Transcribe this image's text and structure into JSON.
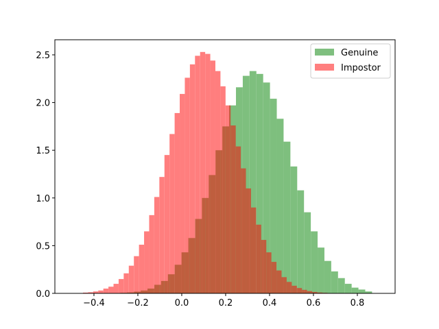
{
  "chart_data": {
    "type": "histogram",
    "series": [
      {
        "name": "Genuine",
        "color": "#008000",
        "alpha": 0.5,
        "bins": [
          -0.28,
          -0.249,
          -0.218,
          -0.187,
          -0.156,
          -0.125,
          -0.094,
          -0.063,
          -0.032,
          -0.001,
          0.03,
          0.061,
          0.092,
          0.123,
          0.154,
          0.185,
          0.216,
          0.247,
          0.278,
          0.309,
          0.34,
          0.371,
          0.402,
          0.433,
          0.464,
          0.495,
          0.526,
          0.557,
          0.588,
          0.619,
          0.65,
          0.681,
          0.712,
          0.743,
          0.774,
          0.805,
          0.836,
          0.867
        ],
        "values": [
          0.006,
          0.01,
          0.018,
          0.03,
          0.05,
          0.09,
          0.13,
          0.2,
          0.3,
          0.43,
          0.58,
          0.78,
          1.0,
          1.24,
          1.5,
          1.75,
          1.97,
          2.16,
          2.28,
          2.33,
          2.3,
          2.21,
          2.04,
          1.83,
          1.59,
          1.33,
          1.08,
          0.85,
          0.65,
          0.48,
          0.34,
          0.23,
          0.16,
          0.1,
          0.06,
          0.04,
          0.02
        ]
      },
      {
        "name": "Impostor",
        "color": "#ff0000",
        "alpha": 0.5,
        "bins": [
          -0.45,
          -0.4268,
          -0.4036,
          -0.3804,
          -0.3572,
          -0.334,
          -0.3108,
          -0.2876,
          -0.2644,
          -0.2412,
          -0.218,
          -0.1948,
          -0.1716,
          -0.1484,
          -0.1252,
          -0.102,
          -0.0788,
          -0.0556,
          -0.0324,
          -0.0092,
          0.014,
          0.0372,
          0.0604,
          0.0836,
          0.1068,
          0.13,
          0.1532,
          0.1764,
          0.1996,
          0.2228,
          0.246,
          0.2692,
          0.2924,
          0.3156,
          0.3388,
          0.362,
          0.3852,
          0.4084,
          0.4316,
          0.4548,
          0.478,
          0.5012,
          0.5244,
          0.5476,
          0.5708,
          0.594,
          0.6172,
          0.6404,
          0.6636,
          0.6868,
          0.71
        ],
        "values": [
          0.008,
          0.012,
          0.02,
          0.03,
          0.05,
          0.07,
          0.1,
          0.15,
          0.21,
          0.29,
          0.39,
          0.51,
          0.65,
          0.82,
          1.01,
          1.22,
          1.45,
          1.67,
          1.89,
          2.09,
          2.26,
          2.4,
          2.49,
          2.53,
          2.51,
          2.44,
          2.33,
          2.17,
          1.97,
          1.76,
          1.54,
          1.31,
          1.1,
          0.9,
          0.72,
          0.56,
          0.43,
          0.33,
          0.24,
          0.17,
          0.12,
          0.08,
          0.056,
          0.037,
          0.024,
          0.015,
          0.009,
          0.006,
          0.003,
          0.002
        ]
      }
    ],
    "xlim": [
      -0.578,
      0.972
    ],
    "ylim": [
      0,
      2.658
    ],
    "xticks": [
      {
        "value": -0.4,
        "label": "−0.4"
      },
      {
        "value": -0.2,
        "label": "−0.2"
      },
      {
        "value": 0,
        "label": "0.0"
      },
      0.2,
      0.4,
      0.6,
      0.8
    ],
    "yticks": [
      {
        "value": 0,
        "label": "0.0"
      },
      0.5,
      {
        "value": 1,
        "label": "1.0"
      },
      1.5,
      {
        "value": 2,
        "label": "2.0"
      },
      2.5
    ],
    "legend": "upper right"
  }
}
